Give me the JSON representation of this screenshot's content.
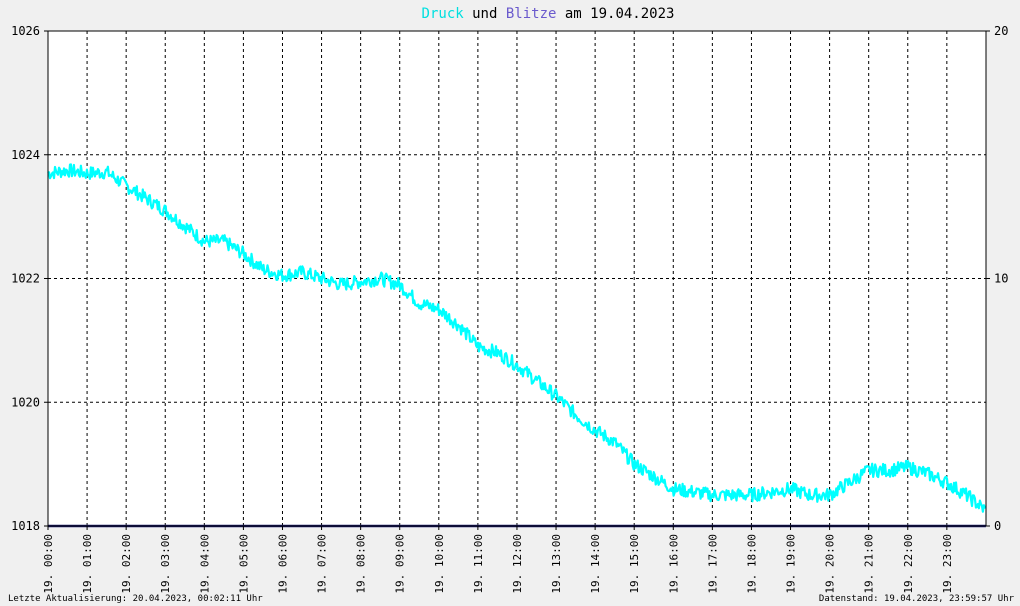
{
  "title": {
    "part1": "Druck",
    "part2": " und ",
    "part3": "Blitze",
    "part4": " am 19.04.2023",
    "color1": "#00e0e0",
    "color2": "#000000",
    "color3": "#6a5acd",
    "color4": "#000000"
  },
  "footer": {
    "left": "Letzte Aktualisierung: 20.04.2023, 00:02:11 Uhr",
    "right": "Datenstand: 19.04.2023, 23:59:57 Uhr"
  },
  "chart_data": {
    "type": "line",
    "x_categories": [
      "19. 00:00",
      "19. 01:00",
      "19. 02:00",
      "19. 03:00",
      "19. 04:00",
      "19. 05:00",
      "19. 06:00",
      "19. 07:00",
      "19. 08:00",
      "19. 09:00",
      "19. 10:00",
      "19. 11:00",
      "19. 12:00",
      "19. 13:00",
      "19. 14:00",
      "19. 15:00",
      "19. 16:00",
      "19. 17:00",
      "19. 18:00",
      "19. 19:00",
      "19. 20:00",
      "19. 21:00",
      "19. 22:00",
      "19. 23:00"
    ],
    "y_left": {
      "min": 1018,
      "max": 1026,
      "ticks": [
        "1018",
        "1020",
        "1022",
        "1024",
        "1026"
      ]
    },
    "y_right": {
      "min": 0,
      "max": 20,
      "ticks": [
        "0",
        "10",
        "20"
      ]
    },
    "grid": true,
    "colors": {
      "druck": "#00ffff",
      "blitze": "#1a1a6e",
      "grid": "#000000",
      "background": "#ffffff"
    },
    "series": [
      {
        "axis": "left",
        "hours": [
          0,
          0.5,
          1,
          1.5,
          2,
          2.5,
          3,
          3.5,
          4,
          4.5,
          5,
          5.5,
          6,
          6.5,
          7,
          7.5,
          8,
          8.5,
          9,
          9.5,
          10,
          10.5,
          11,
          11.5,
          12,
          12.5,
          13,
          13.5,
          14,
          14.5,
          15,
          15.5,
          16,
          16.5,
          17,
          17.5,
          18,
          18.5,
          19,
          19.5,
          20,
          20.5,
          21,
          21.5,
          22,
          22.5,
          23,
          23.5,
          24
        ],
        "values": [
          1023.7,
          1023.75,
          1023.7,
          1023.72,
          1023.5,
          1023.3,
          1023.1,
          1022.85,
          1022.6,
          1022.6,
          1022.4,
          1022.15,
          1022.05,
          1022.1,
          1022.0,
          1021.9,
          1021.95,
          1022.0,
          1021.9,
          1021.6,
          1021.5,
          1021.25,
          1020.9,
          1020.8,
          1020.6,
          1020.35,
          1020.1,
          1019.8,
          1019.55,
          1019.35,
          1019.0,
          1018.8,
          1018.6,
          1018.55,
          1018.5,
          1018.5,
          1018.5,
          1018.55,
          1018.6,
          1018.5,
          1018.5,
          1018.7,
          1018.9,
          1018.9,
          1018.95,
          1018.85,
          1018.7,
          1018.5,
          1018.25
        ]
      },
      {
        "axis": "right",
        "hours": [
          0,
          24
        ],
        "values": [
          0,
          0
        ]
      }
    ]
  }
}
